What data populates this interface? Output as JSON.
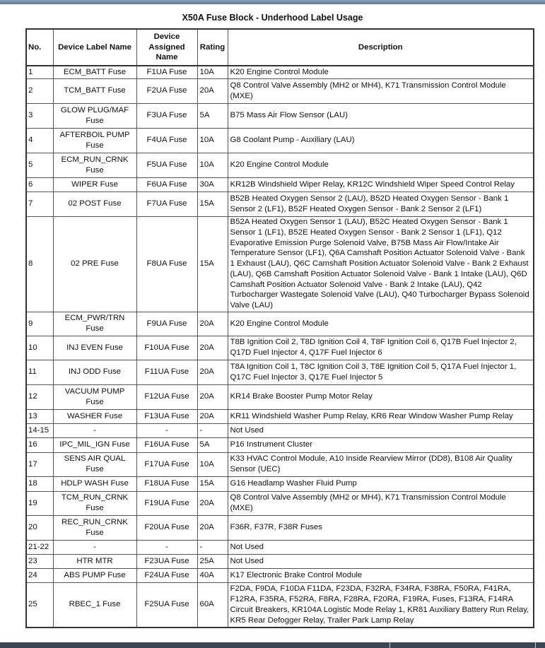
{
  "title": "X50A Fuse Block - Underhood Label Usage",
  "columns": [
    "No.",
    "Device Label Name",
    "Device Assigned Name",
    "Rating",
    "Description"
  ],
  "rows": [
    {
      "no": "1",
      "label": "ECM_BATT Fuse",
      "assigned": "F1UA Fuse",
      "rating": "10A",
      "description": "K20 Engine Control Module"
    },
    {
      "no": "2",
      "label": "TCM_BATT Fuse",
      "assigned": "F2UA Fuse",
      "rating": "20A",
      "description": "Q8 Control Valve Assembly (MH2 or MH4), K71 Transmission Control Module (MXE)"
    },
    {
      "no": "3",
      "label": "GLOW PLUG/MAF Fuse",
      "assigned": "F3UA Fuse",
      "rating": "5A",
      "description": "B75 Mass Air Flow Sensor (LAU)"
    },
    {
      "no": "4",
      "label": "AFTERBOIL PUMP Fuse",
      "assigned": "F4UA Fuse",
      "rating": "10A",
      "description": "G8 Coolant Pump - Auxiliary (LAU)"
    },
    {
      "no": "5",
      "label": "ECM_RUN_CRNK Fuse",
      "assigned": "F5UA Fuse",
      "rating": "10A",
      "description": "K20 Engine Control Module"
    },
    {
      "no": "6",
      "label": "WIPER Fuse",
      "assigned": "F6UA Fuse",
      "rating": "30A",
      "description": "KR12B Windshield Wiper Relay, KR12C Windshield Wiper Speed Control Relay"
    },
    {
      "no": "7",
      "label": "02 POST Fuse",
      "assigned": "F7UA Fuse",
      "rating": "15A",
      "description": "B52B Heated Oxygen Sensor 2 (LAU), B52D Heated Oxygen Sensor - Bank 1 Sensor 2 (LF1), B52F Heated Oxygen Sensor - Bank 2 Sensor 2 (LF1)"
    },
    {
      "no": "8",
      "label": "02 PRE Fuse",
      "assigned": "F8UA Fuse",
      "rating": "15A",
      "description": "B52A Heated Oxygen Sensor 1 (LAU), B52C Heated Oxygen Sensor - Bank 1 Sensor 1 (LF1), B52E Heated Oxygen Sensor - Bank 2 Sensor 1 (LF1), Q12 Evaporative Emission Purge Solenoid Valve, B75B Mass Air Flow/Intake Air Temperature Sensor (LF1), Q6A Camshaft Position Actuator Solenoid Valve - Bank 1 Exhaust (LAU), Q6C Camshaft Position Actuator Solenoid Valve - Bank 2 Exhaust (LAU), Q6B Camshaft Position Actuator Solenoid Valve - Bank 1 Intake (LAU), Q6D Camshaft Position Actuator Solenoid Valve - Bank 2 Intake (LAU), Q42 Turbocharger Wastegate Solenoid Valve (LAU), Q40 Turbocharger Bypass Solenoid Valve (LAU)"
    },
    {
      "no": "9",
      "label": "ECM_PWR/TRN Fuse",
      "assigned": "F9UA Fuse",
      "rating": "20A",
      "description": "K20 Engine Control Module"
    },
    {
      "no": "10",
      "label": "INJ EVEN Fuse",
      "assigned": "F10UA Fuse",
      "rating": "20A",
      "description": "T8B Ignition Coil 2, T8D Ignition Coil 4, T8F Ignition Coil 6, Q17B Fuel Injector 2, Q17D Fuel Injector 4, Q17F Fuel Injector 6"
    },
    {
      "no": "11",
      "label": "INJ ODD Fuse",
      "assigned": "F11UA Fuse",
      "rating": "20A",
      "description": "T8A Ignition Coil 1, T8C Ignition Coil 3, T8E Ignition Coil 5, Q17A Fuel Injector 1, Q17C Fuel Injector 3, Q17E Fuel Injector 5"
    },
    {
      "no": "12",
      "label": "VACUUM PUMP Fuse",
      "assigned": "F12UA Fuse",
      "rating": "20A",
      "description": "KR14 Brake Booster Pump Motor Relay"
    },
    {
      "no": "13",
      "label": "WASHER Fuse",
      "assigned": "F13UA Fuse",
      "rating": "20A",
      "description": "KR11 Windshield Washer Pump Relay, KR6 Rear Window Washer Pump Relay"
    },
    {
      "no": "14-15",
      "label": "-",
      "assigned": "-",
      "rating": "-",
      "description": "Not Used"
    },
    {
      "no": "16",
      "label": "IPC_MIL_IGN Fuse",
      "assigned": "F16UA Fuse",
      "rating": "5A",
      "description": "P16 Instrument Cluster"
    },
    {
      "no": "17",
      "label": "SENS AIR QUAL Fuse",
      "assigned": "F17UA Fuse",
      "rating": "10A",
      "description": "K33 HVAC Control Module, A10 Inside Rearview Mirror (DD8), B108 Air Quality Sensor (UEC)"
    },
    {
      "no": "18",
      "label": "HDLP WASH Fuse",
      "assigned": "F18UA Fuse",
      "rating": "15A",
      "description": "G16 Headlamp Washer Fluid Pump"
    },
    {
      "no": "19",
      "label": "TCM_RUN_CRNK Fuse",
      "assigned": "F19UA Fuse",
      "rating": "20A",
      "description": "Q8 Control Valve Assembly (MH2 or MH4), K71 Transmission Control Module (MXE)"
    },
    {
      "no": "20",
      "label": "REC_RUN_CRNK Fuse",
      "assigned": "F20UA Fuse",
      "rating": "20A",
      "description": "F36R, F37R, F38R Fuses"
    },
    {
      "no": "21-22",
      "label": "-",
      "assigned": "-",
      "rating": "-",
      "description": "Not Used"
    },
    {
      "no": "23",
      "label": "HTR MTR",
      "assigned": "F23UA Fuse",
      "rating": "25A",
      "description": "Not Used"
    },
    {
      "no": "24",
      "label": "ABS PUMP Fuse",
      "assigned": "F24UA Fuse",
      "rating": "40A",
      "description": "K17 Electronic Brake Control Module"
    },
    {
      "no": "25",
      "label": "RBEC_1 Fuse",
      "assigned": "F25UA Fuse",
      "rating": "60A",
      "description": "F2DA, F9DA, F10DA F11DA, F23DA, F32RA, F34RA, F38RA, F50RA, F41RA, F12RA, F35RA, F52RA, F8RA, F28RA, F20RA, F19RA, Fuses, F13RA, F14RA Circuit Breakers, KR104A Logistic Mode Relay 1, KR81 Auxiliary Battery Run Relay, KR5 Rear Defogger Relay, Trailer Park Lamp Relay"
    }
  ]
}
